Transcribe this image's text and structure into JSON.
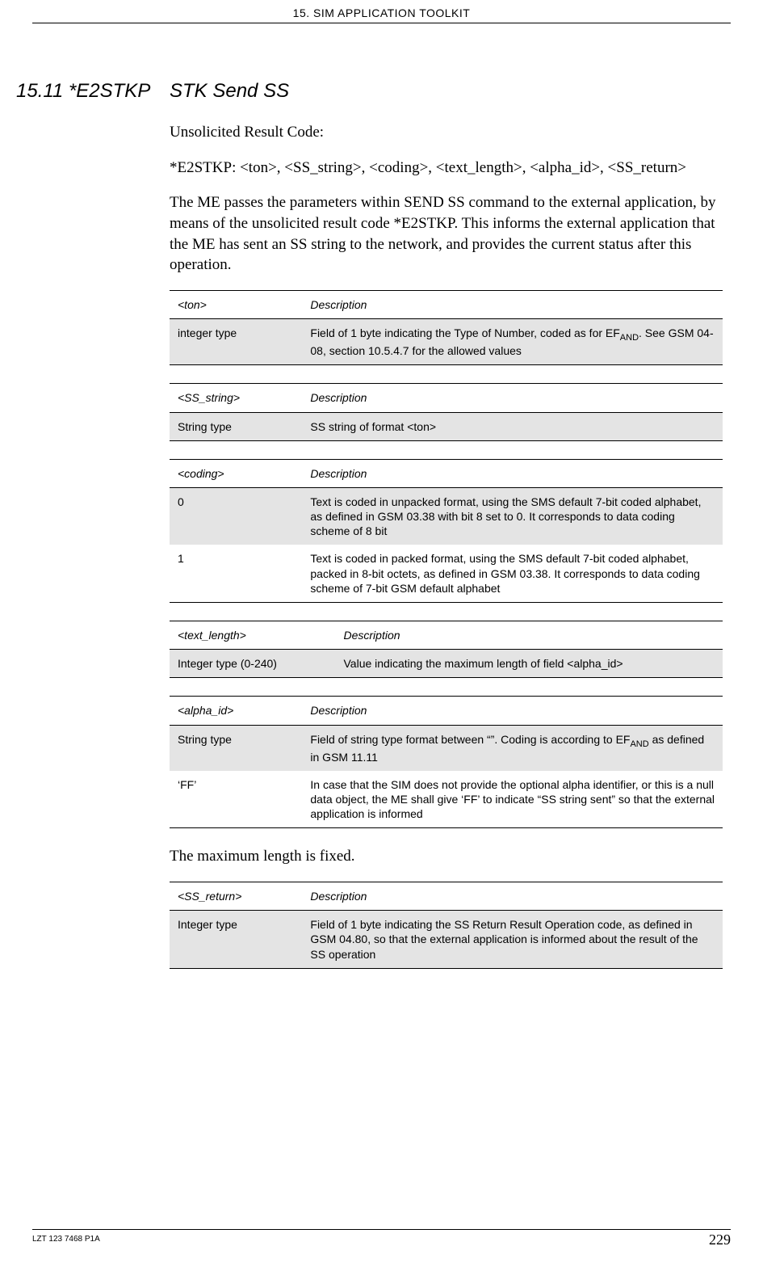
{
  "header": {
    "chapter_title": "15. SIM APPLICATION TOOLKIT"
  },
  "heading": {
    "number": "15.11 *E2STKP",
    "title": "STK Send SS"
  },
  "paragraphs": {
    "p1": "Unsolicited Result Code:",
    "p2": "*E2STKP: <ton>, <SS_string>, <coding>, <text_length>, <alpha_id>, <SS_return>",
    "p3": "The ME passes the parameters within SEND SS command to the external application, by means of the unsolicited result code *E2STKP. This informs the external application that the ME has sent an SS string to the network, and provides the current status after this operation.",
    "p4": "The maximum length is fixed."
  },
  "tables": {
    "ton": {
      "h1": "<ton>",
      "h2": "Description",
      "r1c1": "integer type",
      "r1c2_a": "Field of 1 byte indicating the Type of Number, coded as for EF",
      "r1c2_sub": "AND",
      "r1c2_b": ". See GSM 04-08, section 10.5.4.7 for the allowed values"
    },
    "ss_string": {
      "h1": "<SS_string>",
      "h2": "Description",
      "r1c1": "String type",
      "r1c2": "SS string of format <ton>"
    },
    "coding": {
      "h1": "<coding>",
      "h2": "Description",
      "r1c1": "0",
      "r1c2": "Text is coded in unpacked format, using the SMS default 7-bit coded alphabet, as defined in GSM 03.38 with bit 8 set to 0.  It corresponds to data coding scheme of 8 bit",
      "r2c1": "1",
      "r2c2": "Text is coded in packed format, using the SMS default 7-bit coded alphabet, packed in 8-bit octets, as defined in GSM 03.38. It corresponds to data coding scheme of 7-bit GSM default alphabet"
    },
    "text_length": {
      "h1": "<text_length>",
      "h2": "Description",
      "r1c1": "Integer type (0-240)",
      "r1c2": "Value indicating the maximum length of field <alpha_id>"
    },
    "alpha_id": {
      "h1": "<alpha_id>",
      "h2": "Description",
      "r1c1": "String type",
      "r1c2_a": "Field of string type format between “”. Coding is according to EF",
      "r1c2_sub": "AND",
      "r1c2_b": " as defined in GSM 11.11",
      "r2c1": "‘FF’",
      "r2c2": "In case that the SIM does not provide the optional alpha identifier, or this is a null data object, the ME shall give ‘FF’ to indicate “SS string sent” so that the external application is informed"
    },
    "ss_return": {
      "h1": "<SS_return>",
      "h2": "Description",
      "r1c1": "Integer type",
      "r1c2": "Field of 1 byte indicating the SS Return Result Operation code, as defined in GSM 04.80, so that the external application is informed about the result of the SS operation"
    }
  },
  "footer": {
    "doc_id": "LZT 123 7468 P1A",
    "page_num": "229"
  },
  "colors": {
    "shaded_bg": "#e4e4e4",
    "text": "#000000",
    "page_bg": "#ffffff"
  }
}
